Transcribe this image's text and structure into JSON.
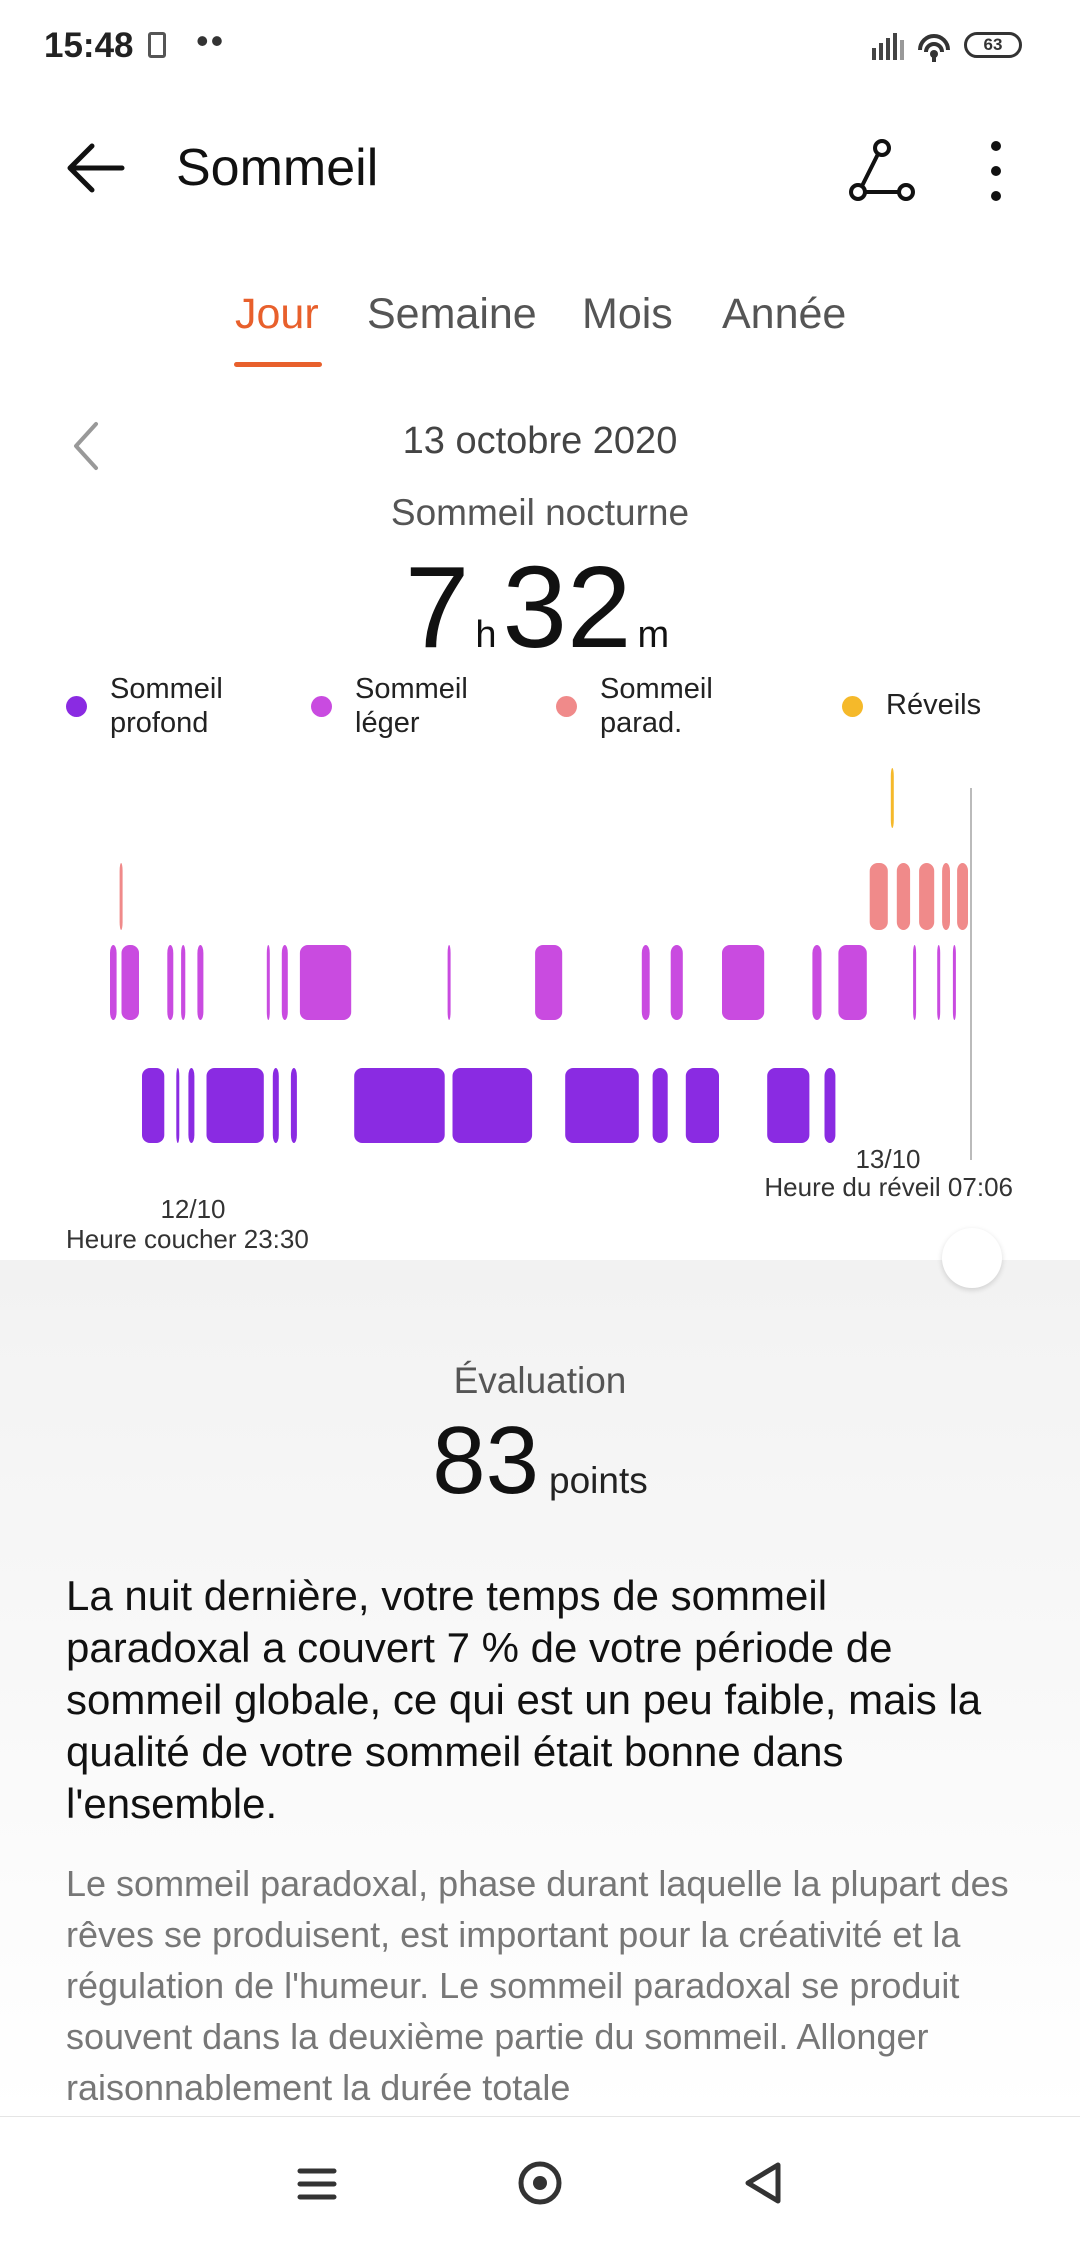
{
  "status": {
    "time": "15:48",
    "battery": "63"
  },
  "header": {
    "title": "Sommeil"
  },
  "tabs": [
    {
      "label": "Jour",
      "active": true
    },
    {
      "label": "Semaine",
      "active": false
    },
    {
      "label": "Mois",
      "active": false
    },
    {
      "label": "Année",
      "active": false
    }
  ],
  "date": "13 octobre 2020",
  "night": {
    "label": "Sommeil nocturne",
    "hours": "7",
    "hours_unit": "h",
    "minutes": "32",
    "minutes_unit": "m"
  },
  "legend": [
    {
      "line1": "Sommeil",
      "line2": "profond",
      "color": "#8a2be2"
    },
    {
      "line1": "Sommeil",
      "line2": "léger",
      "color": "#c94be0"
    },
    {
      "line1": "Sommeil",
      "line2": "parad.",
      "color": "#f08a8a"
    },
    {
      "line1": "Réveils",
      "line2": "",
      "color": "#f5b92a"
    }
  ],
  "chart_data": {
    "type": "area",
    "title": "",
    "stages": [
      "Réveils",
      "Sommeil parad.",
      "Sommeil léger",
      "Sommeil profond"
    ],
    "start_label": "12/10",
    "start_caption": "Heure coucher 23:30",
    "end_label": "13/10",
    "end_caption": "Heure du réveil 07:06",
    "colors": {
      "awake": "#f5b92a",
      "rem": "#f08a8a",
      "light": "#c94be0",
      "deep": "#8a2be2"
    },
    "segments": [
      {
        "stage": "light",
        "start": 0.0,
        "end": 0.16
      },
      {
        "stage": "rem",
        "start": 0.16,
        "end": 0.19
      },
      {
        "stage": "light",
        "start": 0.19,
        "end": 0.53
      },
      {
        "stage": "deep",
        "start": 0.53,
        "end": 0.95
      },
      {
        "stage": "light",
        "start": 0.95,
        "end": 1.1
      },
      {
        "stage": "deep",
        "start": 1.1,
        "end": 1.18
      },
      {
        "stage": "light",
        "start": 1.18,
        "end": 1.3
      },
      {
        "stage": "deep",
        "start": 1.3,
        "end": 1.45
      },
      {
        "stage": "light",
        "start": 1.45,
        "end": 1.6
      },
      {
        "stage": "deep",
        "start": 1.6,
        "end": 2.6
      },
      {
        "stage": "light",
        "start": 2.6,
        "end": 2.7
      },
      {
        "stage": "deep",
        "start": 2.7,
        "end": 2.85
      },
      {
        "stage": "light",
        "start": 2.85,
        "end": 3.0
      },
      {
        "stage": "deep",
        "start": 3.0,
        "end": 3.15
      },
      {
        "stage": "light",
        "start": 3.15,
        "end": 4.05
      },
      {
        "stage": "deep",
        "start": 4.05,
        "end": 5.6
      },
      {
        "stage": "light",
        "start": 5.6,
        "end": 5.68
      },
      {
        "stage": "deep",
        "start": 5.68,
        "end": 7.05
      },
      {
        "stage": "light",
        "start": 7.05,
        "end": 7.55
      },
      {
        "stage": "deep",
        "start": 7.55,
        "end": 8.82
      },
      {
        "stage": "light",
        "start": 8.82,
        "end": 9.0
      },
      {
        "stage": "deep",
        "start": 9.0,
        "end": 9.3
      },
      {
        "stage": "light",
        "start": 9.3,
        "end": 9.55
      },
      {
        "stage": "deep",
        "start": 9.55,
        "end": 10.15
      },
      {
        "stage": "light",
        "start": 10.15,
        "end": 10.9
      },
      {
        "stage": "deep",
        "start": 10.9,
        "end": 11.65
      },
      {
        "stage": "light",
        "start": 11.65,
        "end": 11.85
      },
      {
        "stage": "deep",
        "start": 11.85,
        "end": 12.08
      },
      {
        "stage": "light",
        "start": 12.08,
        "end": 12.6
      },
      {
        "stage": "rem",
        "start": 12.6,
        "end": 12.95
      },
      {
        "stage": "awake",
        "start": 12.95,
        "end": 13.05
      },
      {
        "stage": "rem",
        "start": 13.05,
        "end": 13.32
      },
      {
        "stage": "light",
        "start": 13.32,
        "end": 13.42
      },
      {
        "stage": "rem",
        "start": 13.42,
        "end": 13.72
      },
      {
        "stage": "light",
        "start": 13.72,
        "end": 13.8
      },
      {
        "stage": "rem",
        "start": 13.8,
        "end": 13.98
      },
      {
        "stage": "light",
        "start": 13.98,
        "end": 14.05
      },
      {
        "stage": "rem",
        "start": 14.05,
        "end": 14.28
      }
    ]
  },
  "evaluation": {
    "label": "Évaluation",
    "score": "83",
    "unit": "points"
  },
  "summary": "La nuit dernière, votre temps de sommeil paradoxal a couvert 7 % de votre période de sommeil globale, ce qui est un peu faible, mais la qualité de votre sommeil était bonne dans l'ensemble.",
  "detail": "Le sommeil paradoxal, phase durant laquelle la plupart des rêves se produisent, est important pour la créativité et la régulation de l'humeur. Le sommeil paradoxal se produit souvent dans la deuxième partie du sommeil. Allonger raisonnablement la durée totale"
}
